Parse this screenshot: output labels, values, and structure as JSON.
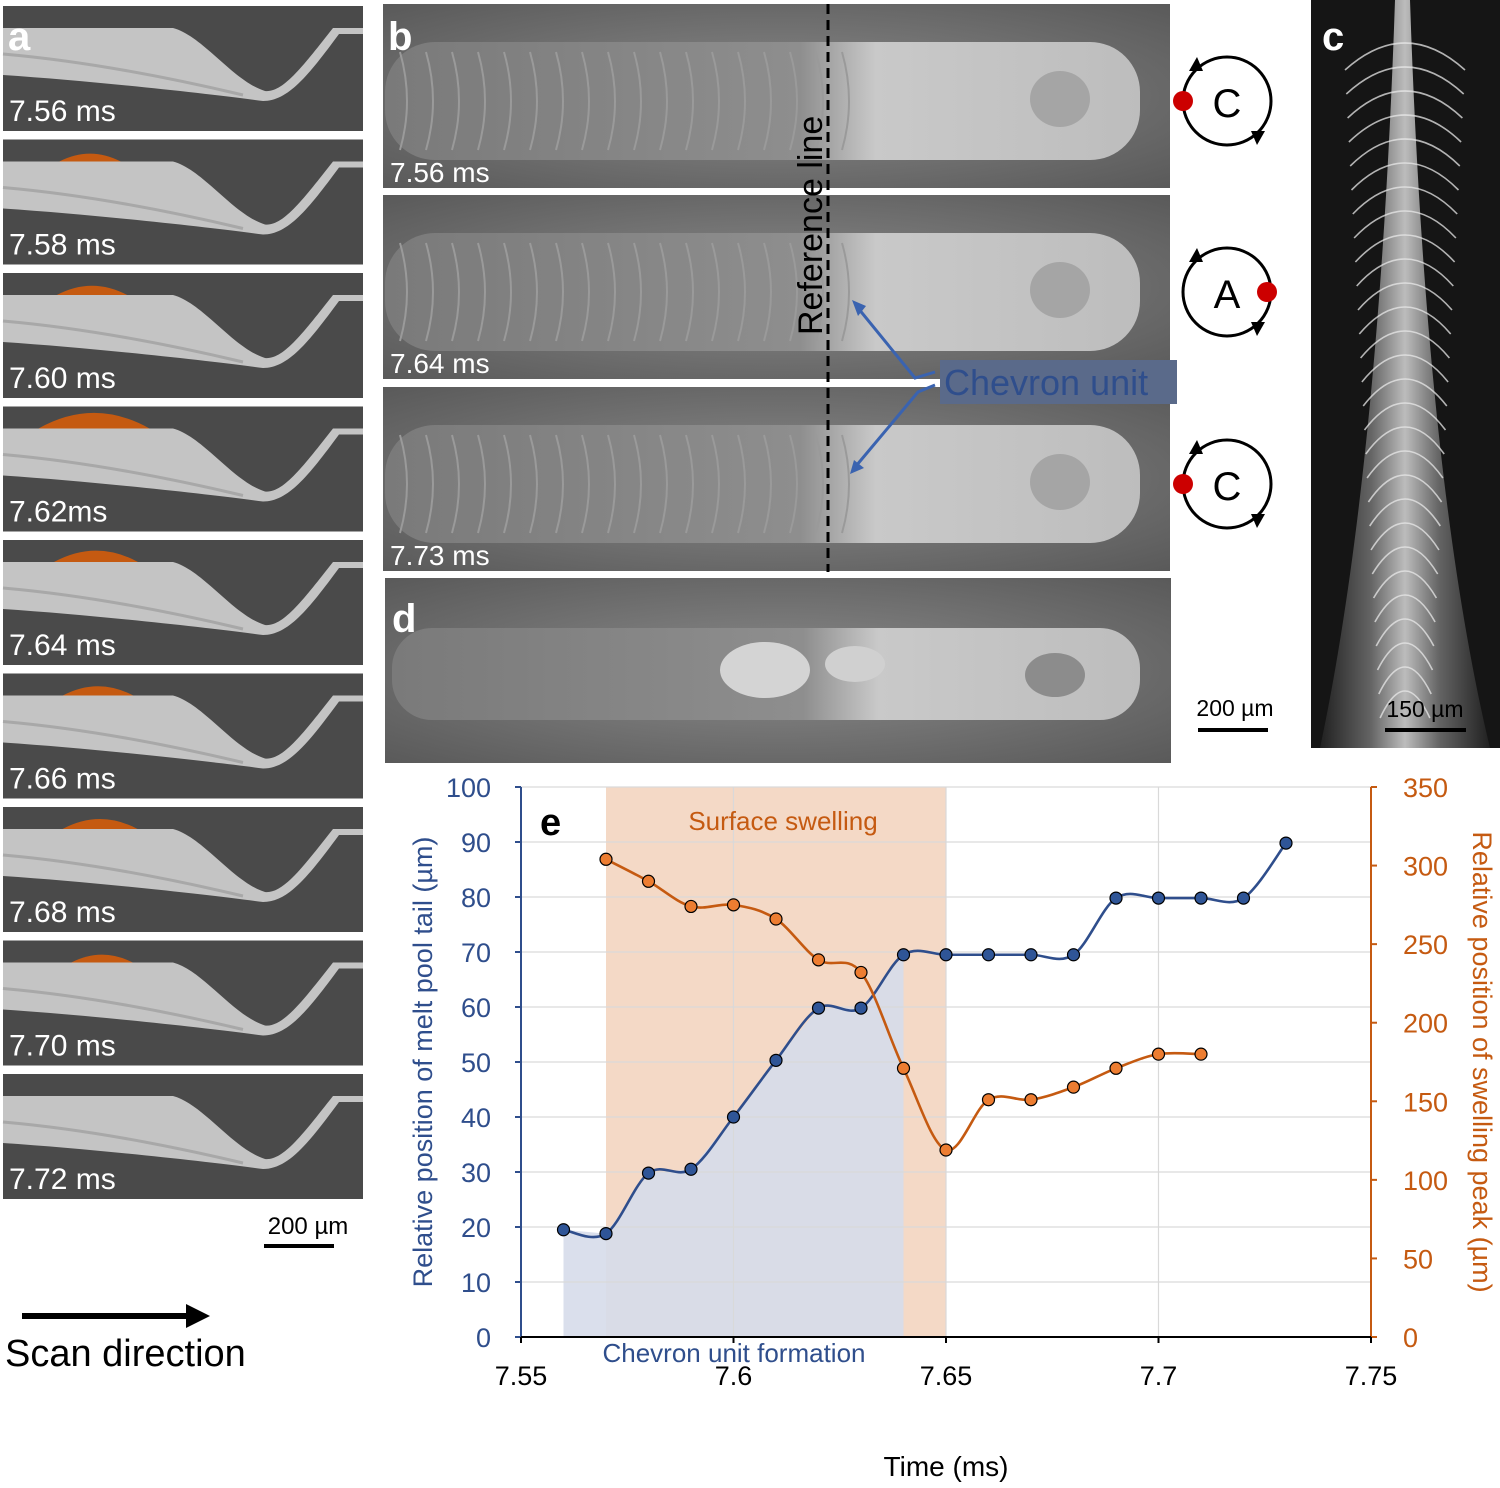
{
  "panel_a": {
    "label": "a",
    "frames": [
      "7.56 ms",
      "7.58 ms",
      "7.60 ms",
      "7.62ms",
      "7.64 ms",
      "7.66 ms",
      "7.68 ms",
      "7.70 ms",
      "7.72 ms"
    ],
    "swell": [
      0,
      0.35,
      0.45,
      0.9,
      0.6,
      0.45,
      0.5,
      0.35,
      0
    ],
    "scale_bar": "200 µm",
    "scan_direction": "Scan direction"
  },
  "panel_b": {
    "label": "b",
    "reference_line": "Reference line",
    "chevron_label": "Chevron unit",
    "frames": [
      {
        "time": "7.56 ms",
        "state": "C"
      },
      {
        "time": "7.64 ms",
        "state": "A"
      },
      {
        "time": "7.73 ms",
        "state": "C"
      }
    ]
  },
  "panel_c": {
    "label": "c",
    "scale_bar": "150 µm"
  },
  "panel_d": {
    "label": "d",
    "scale_bar": "200 µm"
  },
  "colors": {
    "blue": "#2f4e8c",
    "orange": "#c55a11",
    "blue_fill": "#d6dcea",
    "orange_fill": "#f4d9c6"
  },
  "chart_data": {
    "type": "line",
    "panel_label": "e",
    "xlabel": "Time (ms)",
    "ylabel_left": "Relative position of melt pool tail (µm)",
    "ylabel_right": "Relative position of swelling peak (µm)",
    "xlim": [
      7.55,
      7.75
    ],
    "ylim_left": [
      0,
      100
    ],
    "ylim_right": [
      0,
      350
    ],
    "x_ticks": [
      "7.55",
      "7.6",
      "7.65",
      "7.7",
      "7.75"
    ],
    "y_ticks_left": [
      "0",
      "10",
      "20",
      "30",
      "40",
      "50",
      "60",
      "70",
      "80",
      "90",
      "100"
    ],
    "y_ticks_right": [
      "0",
      "50",
      "100",
      "150",
      "200",
      "250",
      "300",
      "350"
    ],
    "grid": true,
    "series": [
      {
        "axis": "left",
        "color": "#2f4e8c",
        "x": [
          7.56,
          7.57,
          7.58,
          7.59,
          7.6,
          7.61,
          7.62,
          7.63,
          7.64,
          7.65,
          7.66,
          7.67,
          7.68,
          7.69,
          7.7,
          7.71,
          7.72,
          7.73
        ],
        "y": [
          19.5,
          18.8,
          29.8,
          30.5,
          40.0,
          50.3,
          59.8,
          59.8,
          69.5,
          69.5,
          69.5,
          69.5,
          69.5,
          79.8,
          79.8,
          79.8,
          79.8,
          89.8
        ]
      },
      {
        "axis": "right",
        "color": "#c55a11",
        "x": [
          7.57,
          7.58,
          7.59,
          7.6,
          7.61,
          7.62,
          7.63,
          7.64,
          7.65,
          7.66,
          7.67,
          7.68,
          7.69,
          7.7,
          7.71
        ],
        "y": [
          304,
          290,
          274,
          275,
          266,
          240,
          232,
          171,
          119,
          151,
          151,
          159,
          171,
          180,
          180
        ]
      }
    ],
    "annotations": [
      {
        "text": "Surface swelling",
        "x_from": 7.57,
        "x_to": 7.65
      },
      {
        "text": "Chevron unit formation",
        "x_from": 7.56,
        "x_to": 7.64
      }
    ]
  }
}
